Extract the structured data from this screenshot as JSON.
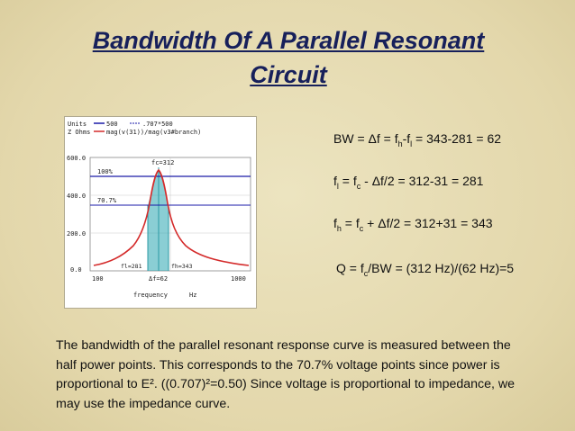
{
  "slide": {
    "title_line1": "Bandwidth Of A Parallel Resonant",
    "title_line2": "Circuit"
  },
  "plot": {
    "units_label": "Units",
    "z_label": "Z Ohms",
    "legend_500": "500",
    "legend_707": ".707*500",
    "legend_mag": "mag(v(31))/mag(v3#branch)",
    "ytick_600": "600.0",
    "ytick_400": "400.0",
    "ytick_200": "200.0",
    "ytick_0": "0.0",
    "label_100pct": "100%",
    "label_707pct": "70.7%",
    "label_fc": "fc=312",
    "label_fl": "fl=281",
    "label_fh": "fh=343",
    "label_df": "Δf=62",
    "xtick_100": "100",
    "xtick_1000": "1000",
    "xlabel": "frequency",
    "xunit": "Hz"
  },
  "equations": {
    "bw": "BW = Δf = f_h-f_l = 343-281 = 62",
    "fl": "f_l = f_c - Δf/2 = 312-31 = 281",
    "fh": "f_h = f_c + Δf/2 = 312+31 = 343",
    "q": "Q = f_c/BW = (312 Hz)/(62 Hz)=5"
  },
  "paragraph": "The bandwidth of the parallel resonant response curve is measured between the half power points. This corresponds to the 70.7% voltage points since power is proportional to E². ((0.707)²=0.50) Since voltage is proportional to impedance, we may use the impedance curve.",
  "colors": {
    "title": "#17205b",
    "background": "#e6dcb4",
    "curve": "#d42a2a",
    "reference_lines": "#1a1aa8",
    "band_fill": "#2aa5b0"
  }
}
